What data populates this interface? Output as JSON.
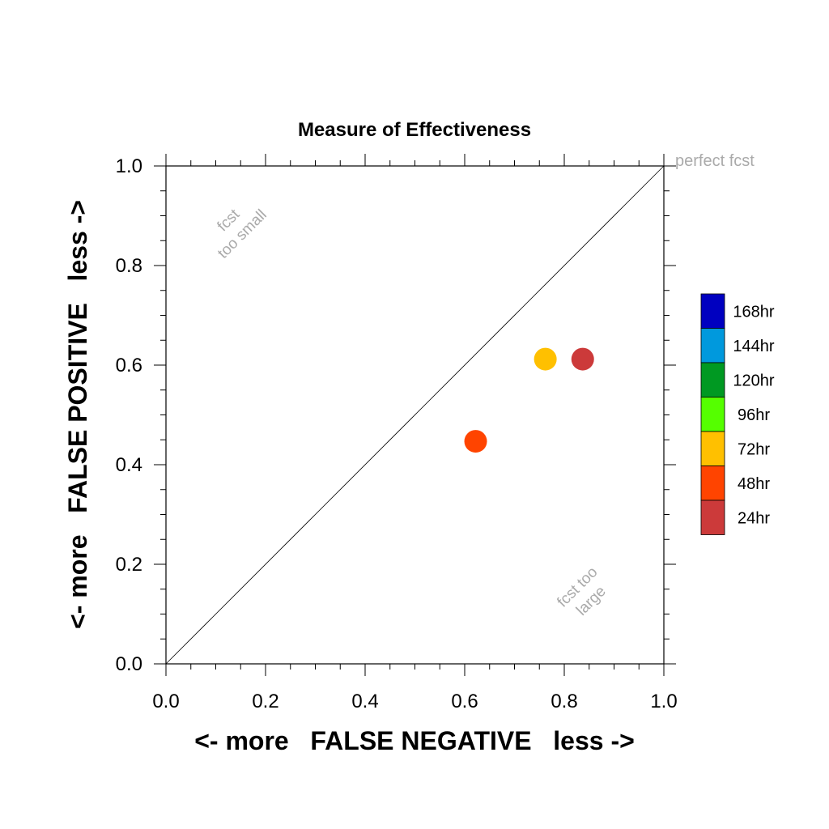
{
  "chart_data": {
    "type": "scatter",
    "title": "Measure of Effectiveness",
    "xlabel": "<- more   FALSE NEGATIVE   less ->",
    "ylabel": "<- more   FALSE POSITIVE   less ->",
    "xlim": [
      0.0,
      1.0
    ],
    "ylim": [
      0.0,
      1.0
    ],
    "x_ticks": [
      "0.0",
      "0.2",
      "0.4",
      "0.6",
      "0.8",
      "1.0"
    ],
    "y_ticks": [
      "0.0",
      "0.2",
      "0.4",
      "0.6",
      "0.8",
      "1.0"
    ],
    "grid": false,
    "reference_line": {
      "from": [
        0.0,
        0.0
      ],
      "to": [
        1.0,
        1.0
      ]
    },
    "annotations": {
      "perfect": "perfect fcst",
      "too_small": [
        "fcst",
        "too small"
      ],
      "too_large": [
        "fcst too",
        "large"
      ]
    },
    "legend": {
      "placement": "right",
      "entries": [
        {
          "label": "168hr",
          "color": "#0000c0"
        },
        {
          "label": "144hr",
          "color": "#0099dd"
        },
        {
          "label": "120hr",
          "color": "#009922"
        },
        {
          "label": "96hr",
          "color": "#55ff00"
        },
        {
          "label": "72hr",
          "color": "#ffc000"
        },
        {
          "label": "48hr",
          "color": "#ff4400"
        },
        {
          "label": "24hr",
          "color": "#cc3a3a"
        }
      ]
    },
    "points": [
      {
        "series": "24hr",
        "x": 0.837,
        "y": 0.612,
        "color": "#cc3a3a"
      },
      {
        "series": "48hr",
        "x": 0.622,
        "y": 0.447,
        "color": "#ff4400"
      },
      {
        "series": "72hr",
        "x": 0.762,
        "y": 0.612,
        "color": "#ffc000"
      }
    ]
  }
}
